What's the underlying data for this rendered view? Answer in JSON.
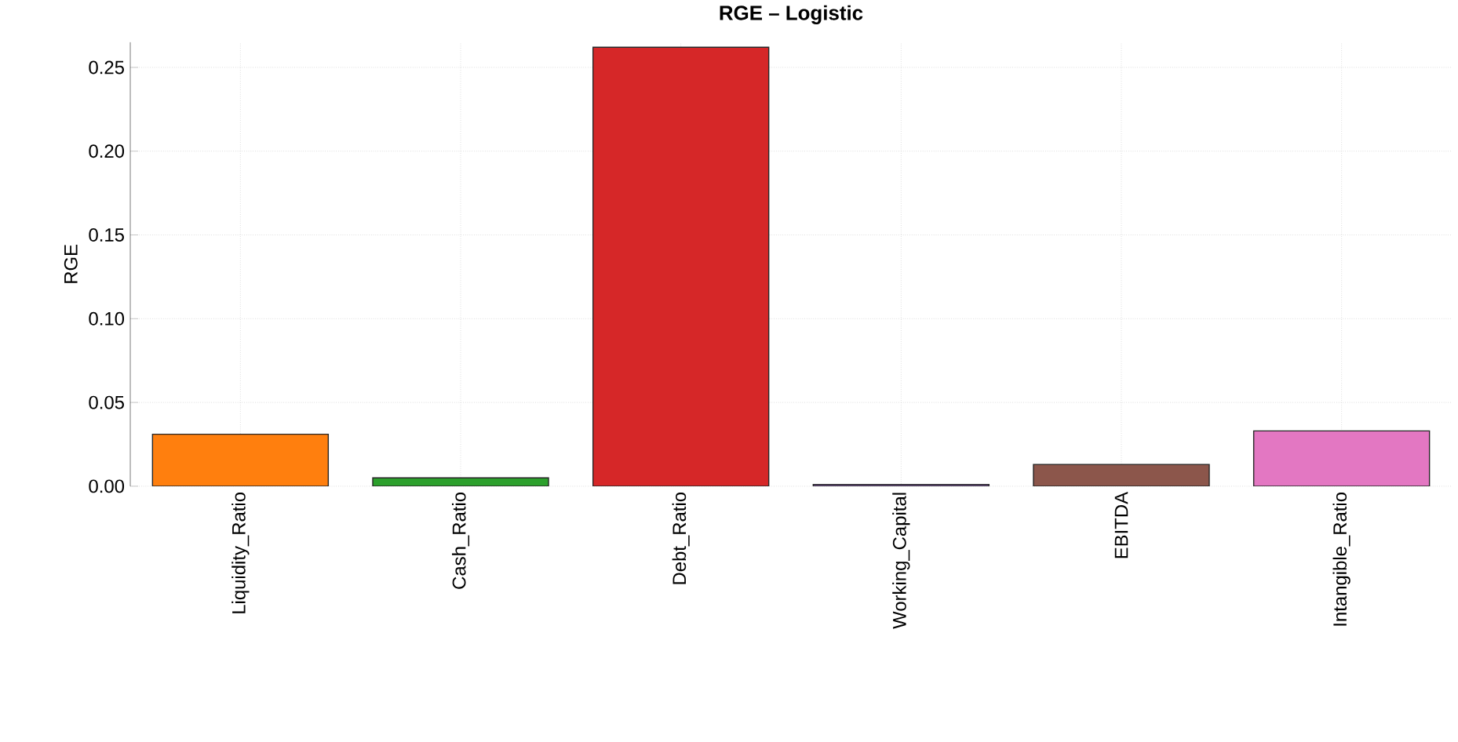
{
  "chart_data": {
    "type": "bar",
    "title": "RGE – Logistic",
    "ylabel": "RGE",
    "categories": [
      "Liquidity_Ratio",
      "Cash_Ratio",
      "Debt_Ratio",
      "Working_Capital",
      "EBITDA",
      "Intangible_Ratio"
    ],
    "values": [
      0.031,
      0.005,
      0.262,
      0.001,
      0.013,
      0.033
    ],
    "colors": [
      "#ff7f0e",
      "#2ca02c",
      "#d62728",
      "#9467bd",
      "#8c564b",
      "#e377c2"
    ],
    "ylim": [
      0,
      0.265
    ],
    "yticks": [
      {
        "value": 0,
        "label": "0.00"
      },
      {
        "value": 0.05,
        "label": "0.05"
      },
      {
        "value": 0.1,
        "label": "0.10"
      },
      {
        "value": 0.15,
        "label": "0.15"
      },
      {
        "value": 0.2,
        "label": "0.20"
      },
      {
        "value": 0.25,
        "label": "0.25"
      }
    ],
    "grid": true
  }
}
